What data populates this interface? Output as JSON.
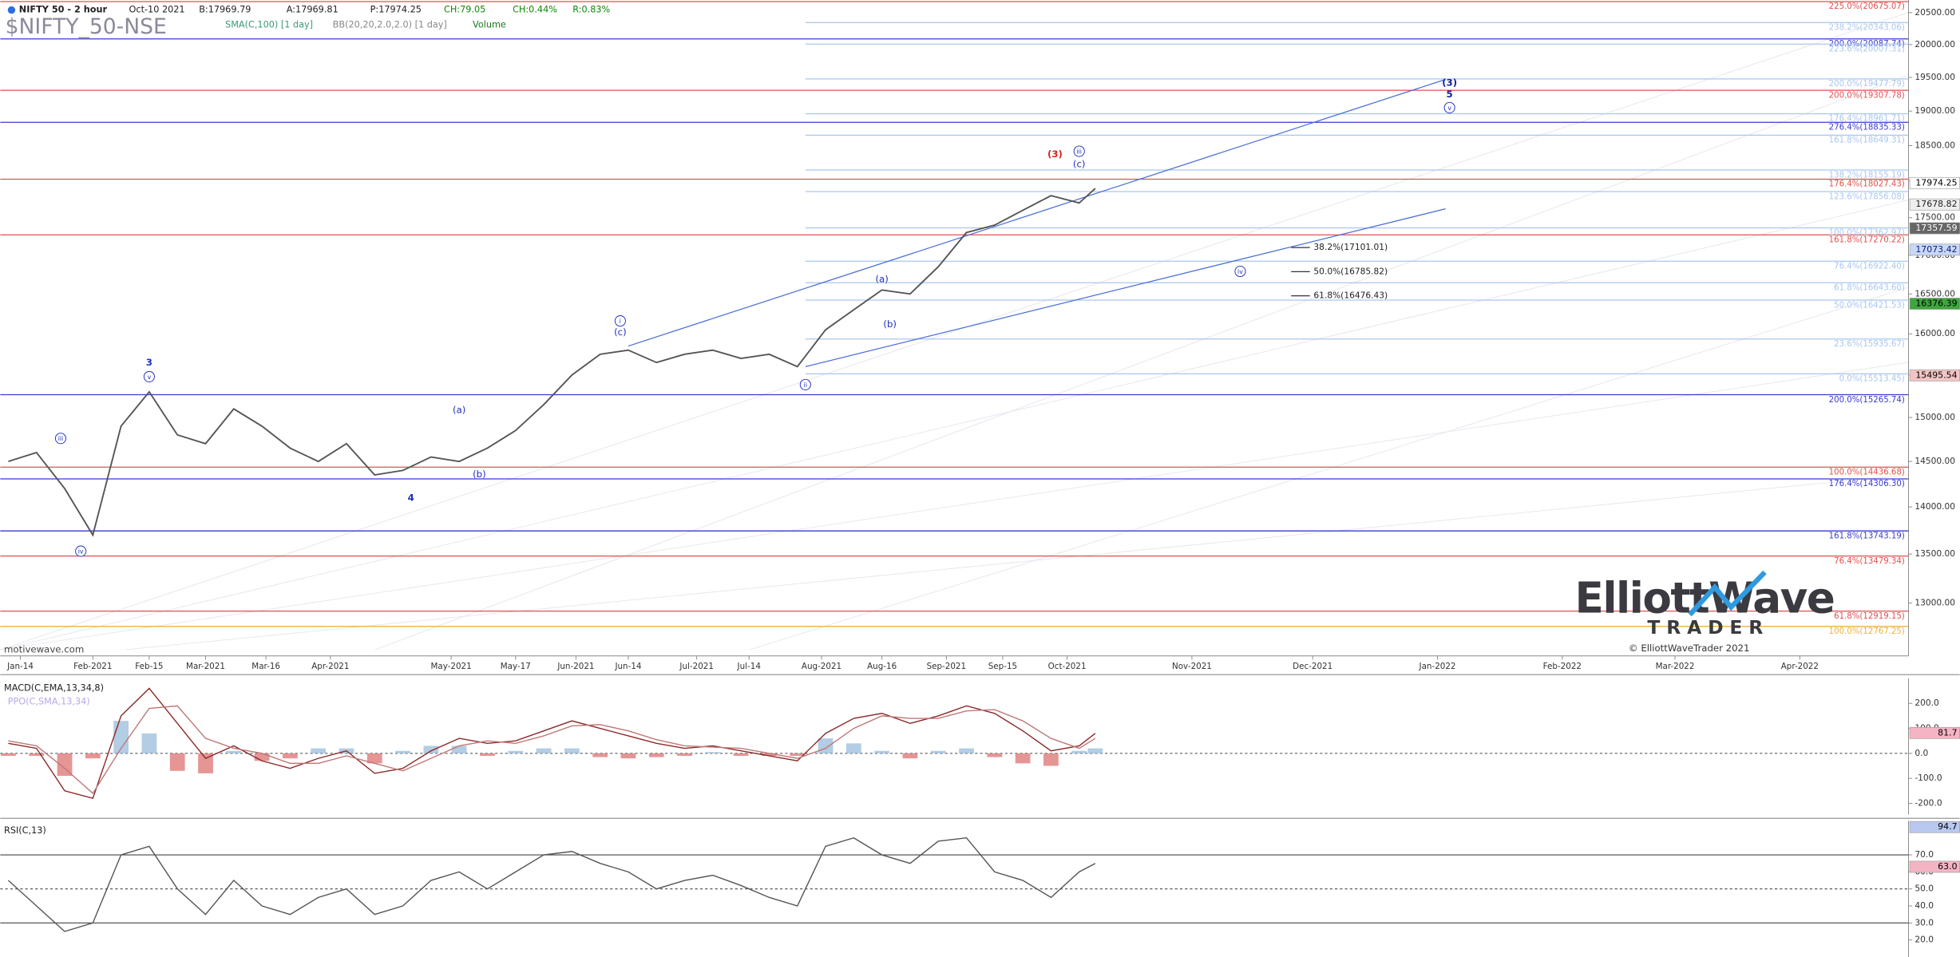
{
  "header": {
    "symbol": "NIFTY 50 - 2 hour",
    "date": "Oct-10 2021",
    "bid": "B:17969.79",
    "ask": "A:17969.81",
    "price": "P:17974.25",
    "change": "CH:79.05",
    "change_pct": "CH:0.44%",
    "range": "R:0.83%",
    "studies": [
      "SMA(C,100) [1 day]",
      "BB(20,20,2.0,2.0) [1 day]",
      "Volume"
    ]
  },
  "footer": {
    "watermark": "motivewave.com",
    "logo": "ElliottWave",
    "logo_sub": "TRADER",
    "copyright": "© ElliottWaveTrader 2021"
  },
  "chart_data": [
    {
      "type": "line",
      "title": "$NIFTY_50-NSE",
      "log_scale": true,
      "xlim": [
        "2021-01-09",
        "2022-04-28"
      ],
      "xticks": [
        {
          "value": "2021-01-14",
          "label": "Jan-14"
        },
        {
          "value": "2021-02-01",
          "label": "Feb-2021"
        },
        {
          "value": "2021-02-15",
          "label": "Feb-15"
        },
        {
          "value": "2021-03-01",
          "label": "Mar-2021"
        },
        {
          "value": "2021-03-16",
          "label": "Mar-16"
        },
        {
          "value": "2021-04-01",
          "label": "Apr-2021"
        },
        {
          "value": "2021-05-01",
          "label": "May-2021"
        },
        {
          "value": "2021-05-17",
          "label": "May-17"
        },
        {
          "value": "2021-06-01",
          "label": "Jun-2021"
        },
        {
          "value": "2021-06-14",
          "label": "Jun-14"
        },
        {
          "value": "2021-07-01",
          "label": "Jul-2021"
        },
        {
          "value": "2021-07-14",
          "label": "Jul-14"
        },
        {
          "value": "2021-08-01",
          "label": "Aug-2021"
        },
        {
          "value": "2021-08-16",
          "label": "Aug-16"
        },
        {
          "value": "2021-09-01",
          "label": "Sep-2021"
        },
        {
          "value": "2021-09-15",
          "label": "Sep-15"
        },
        {
          "value": "2021-10-01",
          "label": "Oct-2021"
        },
        {
          "value": "2021-11-01",
          "label": "Nov-2021"
        },
        {
          "value": "2021-12-01",
          "label": "Dec-2021"
        },
        {
          "value": "2022-01-01",
          "label": "Jan-2022"
        },
        {
          "value": "2022-02-01",
          "label": "Feb-2022"
        },
        {
          "value": "2022-03-01",
          "label": "Mar-2022"
        },
        {
          "value": "2022-04-01",
          "label": "Apr-2022"
        }
      ],
      "ylim": [
        12480,
        20700
      ],
      "yticks": [
        {
          "value": 13000,
          "label": "13000.00"
        },
        {
          "value": 13500,
          "label": "13500.00"
        },
        {
          "value": 14000,
          "label": "14000.00"
        },
        {
          "value": 14500,
          "label": "14500.00"
        },
        {
          "value": 15000,
          "label": "15000.00"
        },
        {
          "value": 15500,
          "label": "15500.00"
        },
        {
          "value": 16000,
          "label": "16000.00"
        },
        {
          "value": 16500,
          "label": "16500.00"
        },
        {
          "value": 17000,
          "label": "17000.00"
        },
        {
          "value": 17500,
          "label": "17500.00"
        },
        {
          "value": 18000,
          "label": "18000.00"
        },
        {
          "value": 18500,
          "label": "18500.00"
        },
        {
          "value": 19000,
          "label": "19000.00"
        },
        {
          "value": 19500,
          "label": "19500.00"
        },
        {
          "value": 20000,
          "label": "20000.00"
        },
        {
          "value": 20500,
          "label": "20500.00"
        }
      ],
      "series": [
        {
          "name": "NIFTY 50",
          "color": "#555555",
          "x": [
            "2021-01-11",
            "2021-01-18",
            "2021-01-25",
            "2021-02-01",
            "2021-02-08",
            "2021-02-15",
            "2021-02-22",
            "2021-03-01",
            "2021-03-08",
            "2021-03-15",
            "2021-03-22",
            "2021-03-29",
            "2021-04-05",
            "2021-04-12",
            "2021-04-19",
            "2021-04-26",
            "2021-05-03",
            "2021-05-10",
            "2021-05-17",
            "2021-05-24",
            "2021-05-31",
            "2021-06-07",
            "2021-06-14",
            "2021-06-21",
            "2021-06-28",
            "2021-07-05",
            "2021-07-12",
            "2021-07-19",
            "2021-07-26",
            "2021-08-02",
            "2021-08-09",
            "2021-08-16",
            "2021-08-23",
            "2021-08-30",
            "2021-09-06",
            "2021-09-13",
            "2021-09-20",
            "2021-09-27",
            "2021-10-04",
            "2021-10-08"
          ],
          "values": [
            14500,
            14600,
            14200,
            13700,
            14900,
            15300,
            14800,
            14700,
            15100,
            14900,
            14650,
            14500,
            14700,
            14350,
            14400,
            14550,
            14500,
            14650,
            14850,
            15150,
            15500,
            15750,
            15800,
            15650,
            15750,
            15800,
            15700,
            15750,
            15600,
            16050,
            16300,
            16550,
            16500,
            16850,
            17300,
            17400,
            17600,
            17800,
            17700,
            17900
          ]
        }
      ],
      "level_sets": [
        {
          "color": "#e05050",
          "levels": [
            {
              "value": 20675.07,
              "label": "225.0%(20675.07)"
            },
            {
              "value": 19307.78,
              "label": "200.0%(19307.78)"
            },
            {
              "value": 18027.43,
              "label": "176.4%(18027.43)"
            },
            {
              "value": 17270.22,
              "label": "161.8%(17270.22)"
            },
            {
              "value": 14436.68,
              "label": "100.0%(14436.68)"
            },
            {
              "value": 13479.34,
              "label": "76.4%(13479.34)"
            },
            {
              "value": 12919.15,
              "label": "61.8%(12919.15)"
            }
          ]
        },
        {
          "color": "#3a3ad0",
          "levels": [
            {
              "value": 20087.74,
              "label": "200.0%(20087.74)"
            },
            {
              "value": 18835.33,
              "label": "276.4%(18835.33)"
            },
            {
              "value": 15265.74,
              "label": "200.0%(15265.74)"
            },
            {
              "value": 14306.3,
              "label": "176.4%(14306.30)"
            },
            {
              "value": 13743.19,
              "label": "161.8%(13743.19)"
            }
          ]
        },
        {
          "color": "#a9c6ef",
          "from": "2021-07-28",
          "levels": [
            {
              "value": 20343.06,
              "label": "238.2%(20343.06)"
            },
            {
              "value": 20007.31,
              "label": "223.6%(20007.31)"
            },
            {
              "value": 19477.79,
              "label": "200.0%(19477.79)"
            },
            {
              "value": 18961.71,
              "label": "176.4%(18961.71)"
            },
            {
              "value": 18649.31,
              "label": "161.8%(18649.31)"
            },
            {
              "value": 18155.19,
              "label": "138.2%(18155.19)"
            },
            {
              "value": 17856.08,
              "label": "123.6%(17856.08)"
            },
            {
              "value": 17362.97,
              "label": "100.0%(17362.97)"
            },
            {
              "value": 16922.4,
              "label": "76.4%(16922.40)"
            },
            {
              "value": 16643.6,
              "label": "61.8%(16643.60)"
            },
            {
              "value": 16421.53,
              "label": "50.0%(16421.53)"
            },
            {
              "value": 15935.67,
              "label": "23.6%(15935.67)"
            },
            {
              "value": 15513.45,
              "label": "0.0%(15513.45)"
            }
          ]
        },
        {
          "color": "#f0b040",
          "levels": [
            {
              "value": 12767.25,
              "label": "100.0%(12767.25)"
            }
          ]
        }
      ],
      "retracements": [
        {
          "value": 17101.01,
          "label": "38.2%(17101.01)"
        },
        {
          "value": 16785.82,
          "label": "50.0%(16785.82)"
        },
        {
          "value": 16476.43,
          "label": "61.8%(16476.43)"
        }
      ],
      "trendlines": [
        {
          "color": "#4a6fd8",
          "x": [
            "2021-06-14",
            "2022-01-03"
          ],
          "values": [
            15850,
            19470
          ]
        },
        {
          "color": "#4a6fd8",
          "x": [
            "2021-07-28",
            "2022-01-03"
          ],
          "values": [
            15600,
            17620
          ]
        }
      ],
      "annotations": [
        {
          "text": "3",
          "x": "2021-02-15",
          "y": 15650,
          "color": "#2030c0",
          "bold": true
        },
        {
          "text": "v",
          "x": "2021-02-15",
          "y": 15480,
          "color": "#2030c0",
          "circled": true
        },
        {
          "text": "iii",
          "x": "2021-01-24",
          "y": 14760,
          "color": "#2030c0",
          "circled": true
        },
        {
          "text": "iv",
          "x": "2021-01-29",
          "y": 13530,
          "color": "#2030c0",
          "circled": true
        },
        {
          "text": "(a)",
          "x": "2021-05-03",
          "y": 15090,
          "color": "#2030c0"
        },
        {
          "text": "(b)",
          "x": "2021-05-08",
          "y": 14360,
          "color": "#2030c0"
        },
        {
          "text": "4",
          "x": "2021-04-21",
          "y": 14100,
          "color": "#2030c0",
          "bold": true
        },
        {
          "text": "i",
          "x": "2021-06-12",
          "y": 16160,
          "color": "#2030c0",
          "circled": true
        },
        {
          "text": "(c)",
          "x": "2021-06-12",
          "y": 16020,
          "color": "#2030c0"
        },
        {
          "text": "ii",
          "x": "2021-07-28",
          "y": 15385,
          "color": "#2030c0",
          "circled": true
        },
        {
          "text": "(a)",
          "x": "2021-08-16",
          "y": 16690,
          "color": "#2030c0"
        },
        {
          "text": "(b)",
          "x": "2021-08-18",
          "y": 16120,
          "color": "#2030c0"
        },
        {
          "text": "(3)",
          "x": "2021-09-28",
          "y": 18380,
          "color": "#e02020",
          "bold": true
        },
        {
          "text": "iii",
          "x": "2021-10-04",
          "y": 18420,
          "color": "#2030c0",
          "circled": true
        },
        {
          "text": "(c)",
          "x": "2021-10-04",
          "y": 18240,
          "color": "#2030c0"
        },
        {
          "text": "iv",
          "x": "2021-11-13",
          "y": 16790,
          "color": "#2030c0",
          "circled": true
        },
        {
          "text": "(3)",
          "x": "2022-01-04",
          "y": 19420,
          "color": "#1020a0",
          "bold": true
        },
        {
          "text": "5",
          "x": "2022-01-04",
          "y": 19250,
          "color": "#1020a0",
          "bold": true
        },
        {
          "text": "v",
          "x": "2022-01-04",
          "y": 19050,
          "color": "#2030c0",
          "circled": true
        }
      ],
      "price_tags": [
        {
          "value": 17974.25,
          "color": "#ffffff",
          "text_color": "#000000"
        },
        {
          "value": 17678.82,
          "color": "#eeeeee",
          "text_color": "#222222"
        },
        {
          "value": 17357.59,
          "color": "#666666",
          "text_color": "#ffffff"
        },
        {
          "value": 17073.42,
          "color": "#c8d8f8",
          "text_color": "#102080"
        },
        {
          "value": 16376.39,
          "color": "#3fa63f",
          "text_color": "#000000"
        },
        {
          "value": 15495.54,
          "color": "#f4c4c4",
          "text_color": "#000000"
        }
      ]
    },
    {
      "type": "line",
      "title": "MACD(C,EMA,13,34,8)",
      "subtitle": "PPO(C,SMA,13,34)",
      "x": [
        "2021-01-11",
        "2021-01-18",
        "2021-01-25",
        "2021-02-01",
        "2021-02-08",
        "2021-02-15",
        "2021-02-22",
        "2021-03-01",
        "2021-03-08",
        "2021-03-15",
        "2021-03-22",
        "2021-03-29",
        "2021-04-05",
        "2021-04-12",
        "2021-04-19",
        "2021-04-26",
        "2021-05-03",
        "2021-05-10",
        "2021-05-17",
        "2021-05-24",
        "2021-05-31",
        "2021-06-07",
        "2021-06-14",
        "2021-06-21",
        "2021-06-28",
        "2021-07-05",
        "2021-07-12",
        "2021-07-19",
        "2021-07-26",
        "2021-08-02",
        "2021-08-09",
        "2021-08-16",
        "2021-08-23",
        "2021-08-30",
        "2021-09-06",
        "2021-09-13",
        "2021-09-20",
        "2021-09-27",
        "2021-10-04",
        "2021-10-08"
      ],
      "ylim": [
        -245,
        300
      ],
      "yticks": [
        {
          "value": -200,
          "label": "-200.0"
        },
        {
          "value": -100,
          "label": "-100.0"
        },
        {
          "value": 0,
          "label": "0.0"
        },
        {
          "value": 100,
          "label": "100.0"
        },
        {
          "value": 200,
          "label": "200.0"
        }
      ],
      "hlines": [
        {
          "value": 0,
          "dashed": true
        }
      ],
      "series": [
        {
          "color": "#9fc0dd",
          "style": "bar",
          "negative_color": "#e07a7a",
          "values": [
            -10,
            -10,
            -90,
            -20,
            130,
            80,
            -70,
            -80,
            10,
            -30,
            -20,
            20,
            20,
            -40,
            10,
            30,
            30,
            -10,
            10,
            20,
            20,
            -15,
            -20,
            -15,
            -10,
            5,
            -10,
            -10,
            -10,
            60,
            40,
            10,
            -20,
            10,
            20,
            -15,
            -40,
            -50,
            10,
            20
          ]
        },
        {
          "color": "#8b2a2a",
          "values": [
            40,
            20,
            -150,
            -180,
            150,
            260,
            120,
            -20,
            30,
            -30,
            -60,
            -20,
            10,
            -80,
            -60,
            10,
            60,
            40,
            50,
            90,
            130,
            100,
            70,
            40,
            20,
            30,
            10,
            -10,
            -30,
            80,
            140,
            160,
            120,
            150,
            190,
            160,
            90,
            10,
            30,
            80
          ]
        },
        {
          "color": "#c07878",
          "values": [
            50,
            30,
            -60,
            -160,
            20,
            180,
            190,
            60,
            20,
            0,
            -40,
            -40,
            -10,
            -40,
            -70,
            -20,
            30,
            50,
            40,
            70,
            110,
            115,
            90,
            55,
            30,
            25,
            20,
            0,
            -20,
            20,
            100,
            150,
            140,
            140,
            170,
            175,
            130,
            60,
            20,
            60
          ]
        }
      ],
      "price_tags": [
        {
          "value": 81.7,
          "color": "#f4b4c4",
          "text_color": "#000000"
        }
      ]
    },
    {
      "type": "line",
      "title": "RSI(C,13)",
      "x": [
        "2021-01-11",
        "2021-01-18",
        "2021-01-25",
        "2021-02-01",
        "2021-02-08",
        "2021-02-15",
        "2021-02-22",
        "2021-03-01",
        "2021-03-08",
        "2021-03-15",
        "2021-03-22",
        "2021-03-29",
        "2021-04-05",
        "2021-04-12",
        "2021-04-19",
        "2021-04-26",
        "2021-05-03",
        "2021-05-10",
        "2021-05-17",
        "2021-05-24",
        "2021-05-31",
        "2021-06-07",
        "2021-06-14",
        "2021-06-21",
        "2021-06-28",
        "2021-07-05",
        "2021-07-12",
        "2021-07-19",
        "2021-07-26",
        "2021-08-02",
        "2021-08-09",
        "2021-08-16",
        "2021-08-23",
        "2021-08-30",
        "2021-09-06",
        "2021-09-13",
        "2021-09-20",
        "2021-09-27",
        "2021-10-04",
        "2021-10-08"
      ],
      "ylim": [
        10,
        90
      ],
      "yticks": [
        {
          "value": 20,
          "label": "20.0"
        },
        {
          "value": 30,
          "label": "30.0"
        },
        {
          "value": 40,
          "label": "40.0"
        },
        {
          "value": 50,
          "label": "50.0"
        },
        {
          "value": 60,
          "label": "60.0"
        },
        {
          "value": 70,
          "label": "70.0"
        }
      ],
      "hlines": [
        {
          "value": 70,
          "dashed": false
        },
        {
          "value": 50,
          "dashed": true
        },
        {
          "value": 30,
          "dashed": false
        }
      ],
      "series": [
        {
          "color": "#555555",
          "values": [
            55,
            40,
            25,
            30,
            70,
            75,
            50,
            35,
            55,
            40,
            35,
            45,
            50,
            35,
            40,
            55,
            60,
            50,
            60,
            70,
            72,
            65,
            60,
            50,
            55,
            58,
            52,
            45,
            40,
            75,
            80,
            70,
            65,
            78,
            80,
            60,
            55,
            45,
            60,
            65
          ]
        }
      ],
      "price_tags": [
        {
          "value": 94.7,
          "color": "#b8c8f0",
          "text_color": "#000000"
        },
        {
          "value": 63,
          "label": "63.0",
          "color": "#f4b4c4",
          "text_color": "#000000"
        }
      ]
    }
  ]
}
